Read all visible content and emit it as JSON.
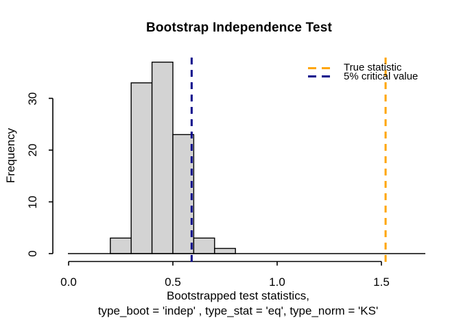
{
  "chart_data": {
    "type": "bar",
    "subtype": "histogram",
    "title": "Bootstrap Independence Test",
    "xlabel_line1": "Bootstrapped test statistics,",
    "xlabel_line2": "type_boot = 'indep' , type_stat = 'eq', type_norm = 'KS'",
    "ylabel": "Frequency",
    "bins": {
      "breaks": [
        0.2,
        0.3,
        0.4,
        0.5,
        0.6,
        0.7,
        0.8
      ],
      "counts": [
        3,
        33,
        37,
        23,
        3,
        1
      ]
    },
    "x_axis": {
      "ticks": [
        0,
        0.5,
        1.0,
        1.5
      ],
      "tick_labels": [
        "0.0",
        "0.5",
        "1.0",
        "1.5"
      ],
      "range": [
        0,
        1.71
      ]
    },
    "y_axis": {
      "ticks": [
        0,
        10,
        20,
        30
      ],
      "tick_labels": [
        "0",
        "10",
        "20",
        "30"
      ],
      "range": [
        0,
        38
      ]
    },
    "vlines": [
      {
        "name": "true-statistic",
        "x": 1.52,
        "color": "#FFA500",
        "style": "dashed"
      },
      {
        "name": "critical-value-5pct",
        "x": 0.59,
        "color": "#00008B",
        "style": "dashed"
      }
    ],
    "legend": {
      "position": "top-right",
      "box": false,
      "entries": [
        {
          "label": "True statistic",
          "color": "#FFA500",
          "line": "dashed"
        },
        {
          "label": "5% critical value",
          "color": "#00008B",
          "line": "dashed"
        }
      ]
    },
    "grid": false,
    "bar_fill": "#D3D3D3",
    "bar_border": "#000000",
    "axis_color": "#000000"
  }
}
